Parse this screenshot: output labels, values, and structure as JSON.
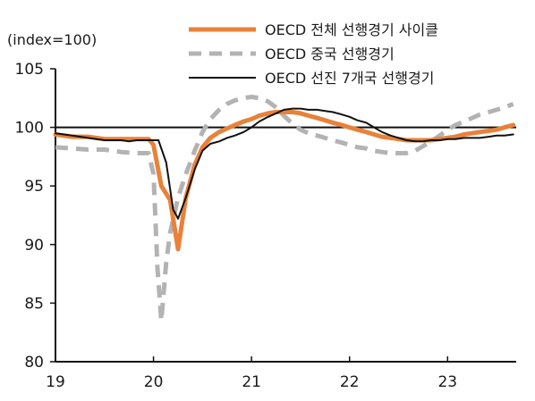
{
  "chart_data": {
    "type": "line",
    "unit_label": "(index=100)",
    "xlim": [
      19,
      23.7
    ],
    "ylim": [
      80,
      105
    ],
    "x_ticks": [
      19,
      20,
      21,
      22,
      23
    ],
    "x_tick_labels": [
      "19",
      "20",
      "21",
      "22",
      "23"
    ],
    "y_ticks": [
      80,
      85,
      90,
      95,
      100,
      105
    ],
    "y_tick_labels": [
      "80",
      "85",
      "90",
      "95",
      "100",
      "105"
    ],
    "reference_line": 100,
    "legend_position": "top-right",
    "series": [
      {
        "name": "OECD 전체 선행경기 사이클",
        "color": "#E8823A",
        "style": "solid-thick",
        "points": [
          [
            19.0,
            99.4
          ],
          [
            19.17,
            99.2
          ],
          [
            19.33,
            99.2
          ],
          [
            19.5,
            99.0
          ],
          [
            19.67,
            99.0
          ],
          [
            19.83,
            99.0
          ],
          [
            19.95,
            99.0
          ],
          [
            20.0,
            98.5
          ],
          [
            20.08,
            95.0
          ],
          [
            20.17,
            93.8
          ],
          [
            20.25,
            89.6
          ],
          [
            20.33,
            94.0
          ],
          [
            20.42,
            96.8
          ],
          [
            20.5,
            98.3
          ],
          [
            20.58,
            99.1
          ],
          [
            20.67,
            99.6
          ],
          [
            20.75,
            99.9
          ],
          [
            20.83,
            100.2
          ],
          [
            20.92,
            100.5
          ],
          [
            21.0,
            100.7
          ],
          [
            21.08,
            101.0
          ],
          [
            21.17,
            101.2
          ],
          [
            21.25,
            101.3
          ],
          [
            21.33,
            101.3
          ],
          [
            21.42,
            101.3
          ],
          [
            21.5,
            101.2
          ],
          [
            21.58,
            101.0
          ],
          [
            21.67,
            100.8
          ],
          [
            21.75,
            100.6
          ],
          [
            21.83,
            100.4
          ],
          [
            21.92,
            100.2
          ],
          [
            22.0,
            100.0
          ],
          [
            22.08,
            99.8
          ],
          [
            22.17,
            99.6
          ],
          [
            22.25,
            99.4
          ],
          [
            22.33,
            99.2
          ],
          [
            22.42,
            99.1
          ],
          [
            22.5,
            99.0
          ],
          [
            22.58,
            98.9
          ],
          [
            22.67,
            98.9
          ],
          [
            22.75,
            98.9
          ],
          [
            22.83,
            98.9
          ],
          [
            22.92,
            99.0
          ],
          [
            23.0,
            99.1
          ],
          [
            23.08,
            99.2
          ],
          [
            23.17,
            99.4
          ],
          [
            23.25,
            99.5
          ],
          [
            23.33,
            99.6
          ],
          [
            23.42,
            99.7
          ],
          [
            23.5,
            99.8
          ],
          [
            23.58,
            100.0
          ],
          [
            23.67,
            100.2
          ]
        ]
      },
      {
        "name": "OECD 중국 선행경기",
        "color": "#B3B3B3",
        "style": "dashed",
        "points": [
          [
            19.0,
            98.3
          ],
          [
            19.17,
            98.2
          ],
          [
            19.33,
            98.1
          ],
          [
            19.5,
            98.1
          ],
          [
            19.67,
            97.9
          ],
          [
            19.83,
            97.8
          ],
          [
            19.95,
            97.8
          ],
          [
            20.0,
            96.0
          ],
          [
            20.04,
            88.0
          ],
          [
            20.08,
            83.5
          ],
          [
            20.13,
            88.5
          ],
          [
            20.17,
            91.0
          ],
          [
            20.25,
            94.0
          ],
          [
            20.33,
            96.0
          ],
          [
            20.42,
            98.0
          ],
          [
            20.5,
            99.6
          ],
          [
            20.58,
            100.7
          ],
          [
            20.67,
            101.5
          ],
          [
            20.75,
            102.0
          ],
          [
            20.83,
            102.3
          ],
          [
            20.92,
            102.5
          ],
          [
            21.0,
            102.6
          ],
          [
            21.08,
            102.5
          ],
          [
            21.17,
            102.2
          ],
          [
            21.25,
            101.7
          ],
          [
            21.33,
            101.0
          ],
          [
            21.42,
            100.3
          ],
          [
            21.5,
            99.8
          ],
          [
            21.58,
            99.5
          ],
          [
            21.67,
            99.3
          ],
          [
            21.75,
            99.1
          ],
          [
            21.83,
            98.9
          ],
          [
            21.92,
            98.7
          ],
          [
            22.0,
            98.5
          ],
          [
            22.08,
            98.3
          ],
          [
            22.17,
            98.2
          ],
          [
            22.25,
            98.0
          ],
          [
            22.33,
            97.9
          ],
          [
            22.42,
            97.8
          ],
          [
            22.5,
            97.8
          ],
          [
            22.58,
            97.8
          ],
          [
            22.67,
            98.0
          ],
          [
            22.75,
            98.4
          ],
          [
            22.83,
            98.8
          ],
          [
            22.92,
            99.3
          ],
          [
            23.0,
            99.8
          ],
          [
            23.08,
            100.2
          ],
          [
            23.17,
            100.5
          ],
          [
            23.25,
            100.8
          ],
          [
            23.33,
            101.1
          ],
          [
            23.42,
            101.3
          ],
          [
            23.5,
            101.5
          ],
          [
            23.58,
            101.7
          ],
          [
            23.67,
            102.0
          ]
        ]
      },
      {
        "name": "OECD 선진 7개국 선행경기",
        "color": "#111111",
        "style": "solid-thin",
        "points": [
          [
            19.0,
            99.5
          ],
          [
            19.17,
            99.3
          ],
          [
            19.33,
            99.1
          ],
          [
            19.5,
            98.9
          ],
          [
            19.67,
            98.9
          ],
          [
            19.75,
            98.8
          ],
          [
            19.83,
            98.9
          ],
          [
            19.95,
            98.9
          ],
          [
            20.05,
            98.9
          ],
          [
            20.13,
            97.0
          ],
          [
            20.2,
            93.0
          ],
          [
            20.25,
            92.2
          ],
          [
            20.33,
            94.0
          ],
          [
            20.42,
            96.4
          ],
          [
            20.5,
            98.0
          ],
          [
            20.58,
            98.6
          ],
          [
            20.67,
            98.8
          ],
          [
            20.75,
            99.1
          ],
          [
            20.83,
            99.3
          ],
          [
            20.92,
            99.6
          ],
          [
            21.0,
            100.0
          ],
          [
            21.08,
            100.5
          ],
          [
            21.17,
            100.9
          ],
          [
            21.25,
            101.2
          ],
          [
            21.33,
            101.5
          ],
          [
            21.42,
            101.6
          ],
          [
            21.5,
            101.6
          ],
          [
            21.58,
            101.5
          ],
          [
            21.67,
            101.5
          ],
          [
            21.75,
            101.4
          ],
          [
            21.83,
            101.3
          ],
          [
            21.92,
            101.1
          ],
          [
            22.0,
            100.9
          ],
          [
            22.08,
            100.6
          ],
          [
            22.17,
            100.4
          ],
          [
            22.25,
            100.0
          ],
          [
            22.33,
            99.6
          ],
          [
            22.42,
            99.3
          ],
          [
            22.5,
            99.1
          ],
          [
            22.58,
            98.9
          ],
          [
            22.67,
            98.8
          ],
          [
            22.75,
            98.8
          ],
          [
            22.83,
            98.9
          ],
          [
            22.92,
            98.9
          ],
          [
            23.0,
            99.0
          ],
          [
            23.08,
            99.0
          ],
          [
            23.17,
            99.1
          ],
          [
            23.25,
            99.1
          ],
          [
            23.33,
            99.1
          ],
          [
            23.42,
            99.2
          ],
          [
            23.5,
            99.3
          ],
          [
            23.58,
            99.3
          ],
          [
            23.67,
            99.4
          ]
        ]
      }
    ]
  }
}
